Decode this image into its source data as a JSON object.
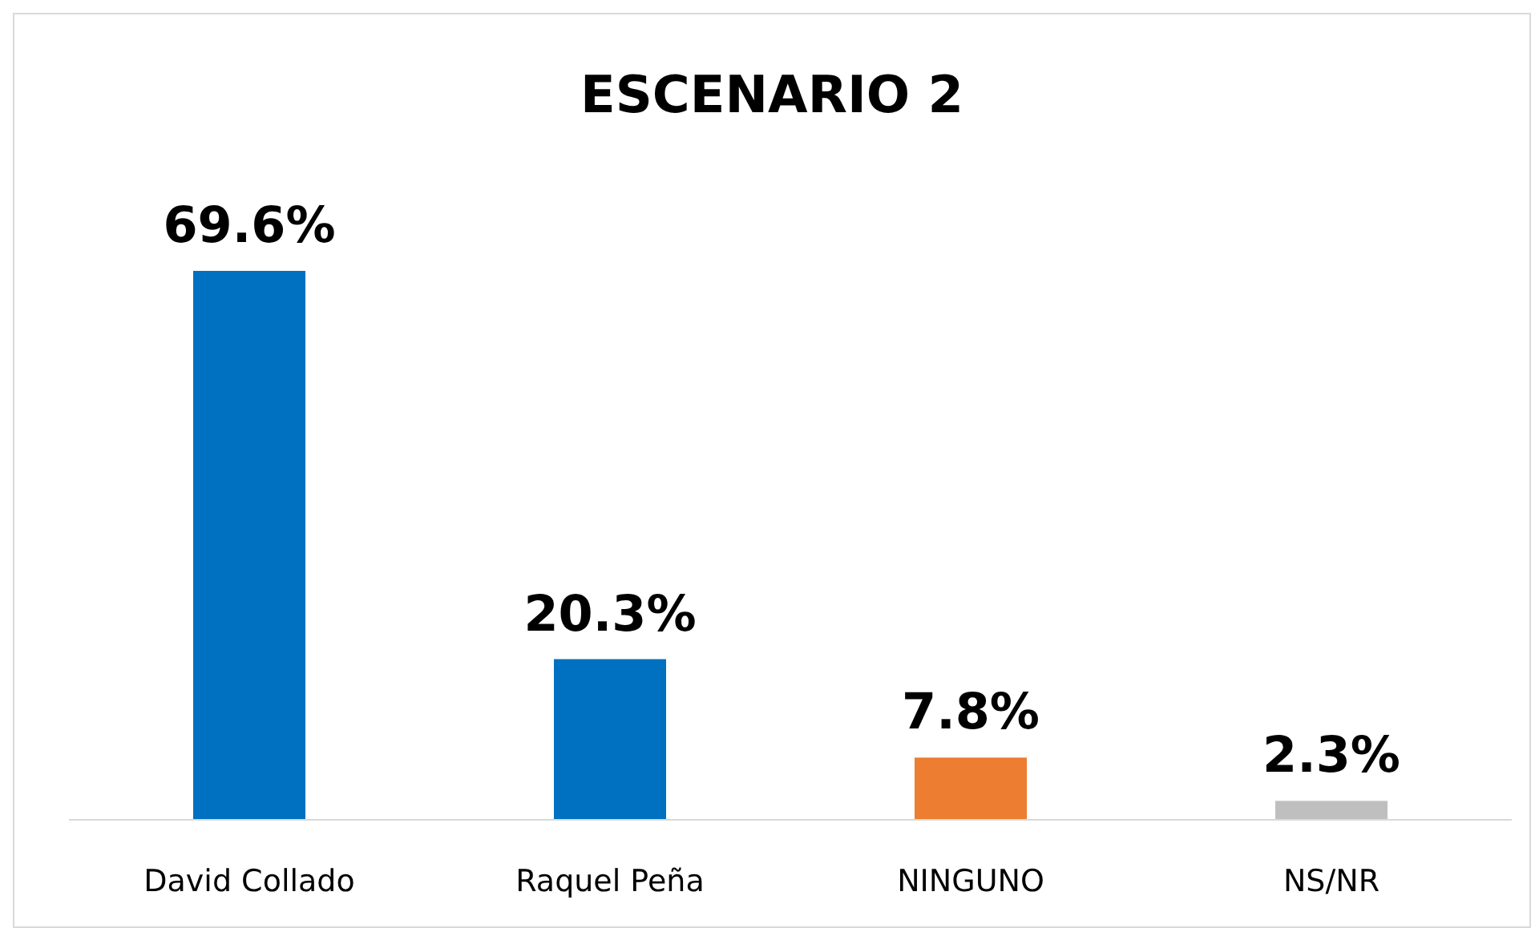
{
  "chart_data": {
    "type": "bar",
    "title": "ESCENARIO 2",
    "categories": [
      "David Collado",
      "Raquel Peña",
      "NINGUNO",
      "NS/NR"
    ],
    "values": [
      69.6,
      20.3,
      7.8,
      2.3
    ],
    "colors": [
      "#0070c0",
      "#0070c0",
      "#ed7d31",
      "#bfbfbf"
    ],
    "value_labels": [
      "69.6%",
      "20.3%",
      "7.8%",
      "2.3%"
    ]
  }
}
